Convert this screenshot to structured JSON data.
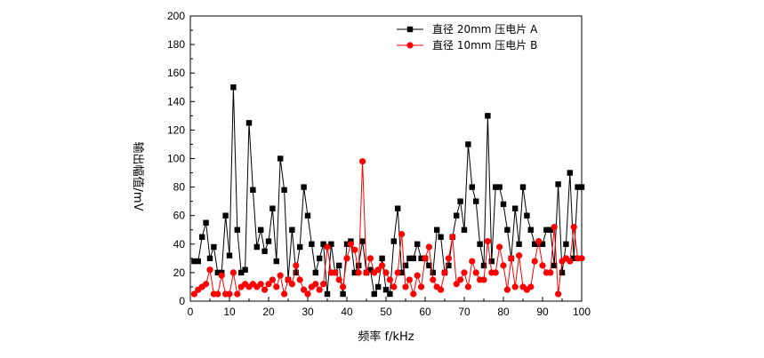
{
  "chart_data": {
    "type": "line",
    "title": "",
    "xlabel": "频率 f/kHz",
    "ylabel": "输出幅值/mV",
    "xlim": [
      0,
      100
    ],
    "ylim": [
      0,
      200
    ],
    "xticks": [
      0,
      10,
      20,
      30,
      40,
      50,
      60,
      70,
      80,
      90,
      100
    ],
    "yticks": [
      0,
      20,
      40,
      60,
      80,
      100,
      120,
      140,
      160,
      180,
      200
    ],
    "grid": false,
    "legend_position": "top-right",
    "series": [
      {
        "name": "直径 20mm 压电片 A",
        "color": "#000000",
        "marker": "square",
        "x": [
          1,
          2,
          3,
          4,
          5,
          6,
          7,
          8,
          9,
          10,
          11,
          12,
          13,
          14,
          15,
          16,
          17,
          18,
          19,
          20,
          21,
          22,
          23,
          24,
          25,
          26,
          27,
          28,
          29,
          30,
          31,
          32,
          33,
          34,
          35,
          36,
          37,
          38,
          39,
          40,
          41,
          42,
          43,
          44,
          45,
          46,
          47,
          48,
          49,
          50,
          51,
          52,
          53,
          54,
          55,
          56,
          57,
          58,
          59,
          60,
          61,
          62,
          63,
          64,
          65,
          66,
          67,
          68,
          69,
          70,
          71,
          72,
          73,
          74,
          75,
          76,
          77,
          78,
          79,
          80,
          81,
          82,
          83,
          84,
          85,
          86,
          87,
          88,
          89,
          90,
          91,
          92,
          93,
          94,
          95,
          96,
          97,
          98,
          99,
          100
        ],
        "values": [
          28,
          28,
          45,
          55,
          30,
          38,
          20,
          20,
          60,
          32,
          150,
          50,
          20,
          22,
          125,
          78,
          38,
          50,
          35,
          42,
          65,
          28,
          100,
          78,
          15,
          50,
          20,
          38,
          80,
          60,
          40,
          20,
          30,
          40,
          5,
          40,
          20,
          25,
          5,
          40,
          42,
          20,
          25,
          42,
          20,
          22,
          5,
          10,
          30,
          8,
          5,
          42,
          65,
          20,
          25,
          30,
          30,
          40,
          30,
          30,
          25,
          20,
          50,
          45,
          20,
          25,
          45,
          60,
          70,
          50,
          110,
          80,
          70,
          40,
          25,
          130,
          28,
          80,
          80,
          68,
          50,
          30,
          65,
          40,
          80,
          60,
          50,
          40,
          40,
          40,
          50,
          50,
          25,
          82,
          20,
          40,
          90,
          30,
          80,
          80
        ]
      },
      {
        "name": "直径 10mm 压电片 B",
        "color": "#ff0000",
        "marker": "circle",
        "x": [
          1,
          2,
          3,
          4,
          5,
          6,
          7,
          8,
          9,
          10,
          11,
          12,
          13,
          14,
          15,
          16,
          17,
          18,
          19,
          20,
          21,
          22,
          23,
          24,
          25,
          26,
          27,
          28,
          29,
          30,
          31,
          32,
          33,
          34,
          35,
          36,
          37,
          38,
          39,
          40,
          41,
          42,
          43,
          44,
          45,
          46,
          47,
          48,
          49,
          50,
          51,
          52,
          53,
          54,
          55,
          56,
          57,
          58,
          59,
          60,
          61,
          62,
          63,
          64,
          65,
          66,
          67,
          68,
          69,
          70,
          71,
          72,
          73,
          74,
          75,
          76,
          77,
          78,
          79,
          80,
          81,
          82,
          83,
          84,
          85,
          86,
          87,
          88,
          89,
          90,
          91,
          92,
          93,
          94,
          95,
          96,
          97,
          98,
          99,
          100
        ],
        "values": [
          5,
          8,
          10,
          12,
          22,
          5,
          5,
          18,
          5,
          5,
          20,
          5,
          10,
          12,
          10,
          12,
          10,
          12,
          8,
          12,
          15,
          10,
          18,
          5,
          15,
          12,
          25,
          15,
          8,
          5,
          10,
          12,
          8,
          12,
          38,
          20,
          20,
          15,
          10,
          30,
          40,
          36,
          20,
          98,
          20,
          30,
          20,
          22,
          25,
          20,
          15,
          10,
          20,
          47,
          10,
          15,
          5,
          18,
          10,
          30,
          38,
          15,
          10,
          8,
          20,
          30,
          45,
          12,
          15,
          20,
          10,
          28,
          20,
          15,
          15,
          42,
          20,
          20,
          38,
          25,
          8,
          30,
          10,
          32,
          10,
          8,
          10,
          28,
          42,
          25,
          20,
          20,
          52,
          5,
          28,
          30,
          28,
          52,
          30,
          30
        ]
      }
    ]
  }
}
